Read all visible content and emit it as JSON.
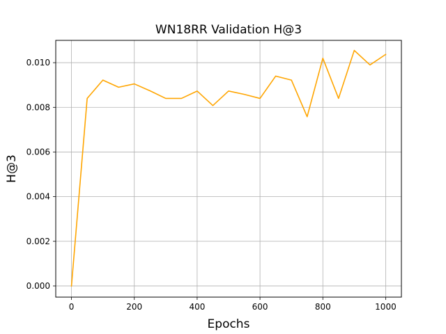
{
  "chart_data": {
    "type": "line",
    "title": "WN18RR Validation H@3",
    "xlabel": "Epochs",
    "ylabel": "H@3",
    "xlim": [
      -50,
      1050
    ],
    "ylim": [
      -0.0005,
      0.011
    ],
    "xticks": [
      0,
      200,
      400,
      600,
      800,
      1000
    ],
    "xtick_labels": [
      "0",
      "200",
      "400",
      "600",
      "800",
      "1000"
    ],
    "yticks": [
      0.0,
      0.002,
      0.004,
      0.006,
      0.008,
      0.01
    ],
    "ytick_labels": [
      "0.000",
      "0.002",
      "0.004",
      "0.006",
      "0.008",
      "0.010"
    ],
    "grid": true,
    "series": [
      {
        "color": "#ffa500",
        "x": [
          0,
          50,
          100,
          150,
          200,
          250,
          300,
          350,
          400,
          450,
          500,
          550,
          600,
          650,
          700,
          750,
          800,
          850,
          900,
          950,
          1000
        ],
        "values": [
          0.0,
          0.0084,
          0.00922,
          0.0089,
          0.00905,
          0.00874,
          0.0084,
          0.0084,
          0.00873,
          0.00808,
          0.00873,
          0.00858,
          0.0084,
          0.0094,
          0.00922,
          0.00758,
          0.0102,
          0.0084,
          0.01055,
          0.0099,
          0.01037
        ]
      }
    ]
  }
}
